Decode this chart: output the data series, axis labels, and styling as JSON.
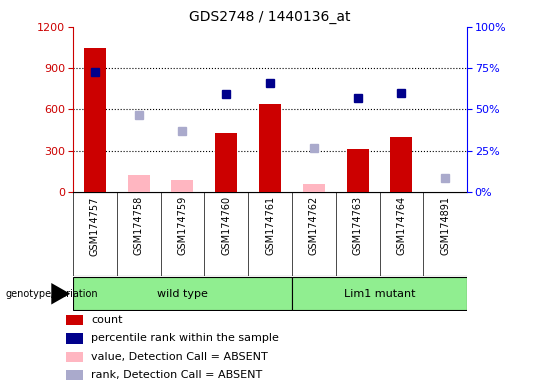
{
  "title": "GDS2748 / 1440136_at",
  "samples": [
    "GSM174757",
    "GSM174758",
    "GSM174759",
    "GSM174760",
    "GSM174761",
    "GSM174762",
    "GSM174763",
    "GSM174764",
    "GSM174891"
  ],
  "count_present": [
    1050,
    null,
    null,
    430,
    640,
    null,
    310,
    400,
    null
  ],
  "count_absent": [
    null,
    120,
    90,
    null,
    null,
    60,
    null,
    null,
    null
  ],
  "rank_present": [
    870,
    null,
    null,
    710,
    790,
    null,
    680,
    720,
    null
  ],
  "rank_absent": [
    null,
    560,
    440,
    null,
    null,
    320,
    null,
    null,
    100
  ],
  "wild_type_count": 5,
  "lim1_mutant_count": 4,
  "ylim_left": [
    0,
    1200
  ],
  "ylim_right": [
    0,
    100
  ],
  "yticks_left": [
    0,
    300,
    600,
    900,
    1200
  ],
  "yticks_right": [
    0,
    25,
    50,
    75,
    100
  ],
  "color_count_present": "#CC0000",
  "color_count_absent": "#FFB6C1",
  "color_rank_present": "#00008B",
  "color_rank_absent": "#AAAACC",
  "color_wt": "#90EE90",
  "color_mut": "#90EE90",
  "color_header": "#C8C8C8",
  "bar_width": 0.5,
  "legend_items": [
    [
      "#CC0000",
      "count"
    ],
    [
      "#00008B",
      "percentile rank within the sample"
    ],
    [
      "#FFB6C1",
      "value, Detection Call = ABSENT"
    ],
    [
      "#AAAACC",
      "rank, Detection Call = ABSENT"
    ]
  ]
}
